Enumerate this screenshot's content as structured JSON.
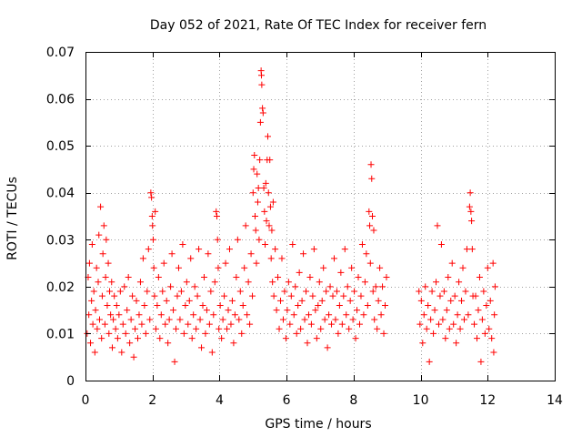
{
  "chart_data": {
    "type": "scatter",
    "title": "Day 052 of 2021, Rate Of TEC Index for receiver fern",
    "xlabel": "GPS time / hours",
    "ylabel": "ROTI / TECUs",
    "xlim": [
      0,
      14
    ],
    "ylim": [
      0,
      0.07
    ],
    "xticks": [
      0,
      2,
      4,
      6,
      8,
      10,
      12,
      14
    ],
    "xtick_labels": [
      "0",
      "2",
      "4",
      "6",
      "8",
      "10",
      "12",
      "14"
    ],
    "yticks": [
      0,
      0.01,
      0.02,
      0.03,
      0.04,
      0.05,
      0.06,
      0.07
    ],
    "ytick_labels": [
      "0",
      "0.01",
      "0.02",
      "0.03",
      "0.04",
      "0.05",
      "0.06",
      "0.07"
    ],
    "grid": true,
    "marker": "plus",
    "series_color": "#ff0000",
    "points": [
      [
        0.05,
        0.01
      ],
      [
        0.08,
        0.022
      ],
      [
        0.1,
        0.014
      ],
      [
        0.12,
        0.025
      ],
      [
        0.15,
        0.008
      ],
      [
        0.18,
        0.017
      ],
      [
        0.2,
        0.029
      ],
      [
        0.22,
        0.012
      ],
      [
        0.25,
        0.019
      ],
      [
        0.28,
        0.006
      ],
      [
        0.3,
        0.015
      ],
      [
        0.33,
        0.024
      ],
      [
        0.35,
        0.011
      ],
      [
        0.38,
        0.021
      ],
      [
        0.4,
        0.031
      ],
      [
        0.42,
        0.013
      ],
      [
        0.45,
        0.037
      ],
      [
        0.48,
        0.009
      ],
      [
        0.5,
        0.018
      ],
      [
        0.52,
        0.027
      ],
      [
        0.55,
        0.033
      ],
      [
        0.58,
        0.012
      ],
      [
        0.6,
        0.022
      ],
      [
        0.62,
        0.03
      ],
      [
        0.65,
        0.016
      ],
      [
        0.68,
        0.025
      ],
      [
        0.7,
        0.01
      ],
      [
        0.72,
        0.019
      ],
      [
        0.75,
        0.014
      ],
      [
        0.78,
        0.021
      ],
      [
        0.8,
        0.007
      ],
      [
        0.83,
        0.013
      ],
      [
        0.86,
        0.018
      ],
      [
        0.9,
        0.011
      ],
      [
        0.93,
        0.016
      ],
      [
        0.96,
        0.009
      ],
      [
        1.0,
        0.014
      ],
      [
        1.04,
        0.019
      ],
      [
        1.08,
        0.006
      ],
      [
        1.12,
        0.012
      ],
      [
        1.16,
        0.02
      ],
      [
        1.2,
        0.01
      ],
      [
        1.24,
        0.015
      ],
      [
        1.28,
        0.022
      ],
      [
        1.32,
        0.008
      ],
      [
        1.36,
        0.013
      ],
      [
        1.4,
        0.018
      ],
      [
        1.44,
        0.005
      ],
      [
        1.48,
        0.011
      ],
      [
        1.52,
        0.017
      ],
      [
        1.56,
        0.009
      ],
      [
        1.6,
        0.014
      ],
      [
        1.64,
        0.021
      ],
      [
        1.68,
        0.012
      ],
      [
        1.72,
        0.026
      ],
      [
        1.76,
        0.016
      ],
      [
        1.8,
        0.01
      ],
      [
        1.84,
        0.019
      ],
      [
        1.88,
        0.028
      ],
      [
        1.92,
        0.013
      ],
      [
        1.95,
        0.04
      ],
      [
        1.97,
        0.039
      ],
      [
        1.99,
        0.035
      ],
      [
        2.0,
        0.033
      ],
      [
        2.02,
        0.03
      ],
      [
        2.04,
        0.024
      ],
      [
        2.06,
        0.018
      ],
      [
        2.08,
        0.036
      ],
      [
        2.1,
        0.011
      ],
      [
        2.14,
        0.016
      ],
      [
        2.18,
        0.022
      ],
      [
        2.22,
        0.009
      ],
      [
        2.26,
        0.014
      ],
      [
        2.3,
        0.019
      ],
      [
        2.34,
        0.025
      ],
      [
        2.38,
        0.012
      ],
      [
        2.42,
        0.017
      ],
      [
        2.46,
        0.008
      ],
      [
        2.5,
        0.013
      ],
      [
        2.54,
        0.02
      ],
      [
        2.58,
        0.027
      ],
      [
        2.62,
        0.015
      ],
      [
        2.66,
        0.004
      ],
      [
        2.7,
        0.011
      ],
      [
        2.74,
        0.018
      ],
      [
        2.78,
        0.024
      ],
      [
        2.82,
        0.013
      ],
      [
        2.86,
        0.019
      ],
      [
        2.9,
        0.029
      ],
      [
        2.94,
        0.01
      ],
      [
        2.98,
        0.016
      ],
      [
        3.02,
        0.021
      ],
      [
        3.06,
        0.012
      ],
      [
        3.1,
        0.017
      ],
      [
        3.14,
        0.026
      ],
      [
        3.18,
        0.009
      ],
      [
        3.22,
        0.014
      ],
      [
        3.26,
        0.02
      ],
      [
        3.3,
        0.011
      ],
      [
        3.34,
        0.018
      ],
      [
        3.38,
        0.028
      ],
      [
        3.42,
        0.013
      ],
      [
        3.46,
        0.007
      ],
      [
        3.5,
        0.016
      ],
      [
        3.54,
        0.022
      ],
      [
        3.58,
        0.01
      ],
      [
        3.62,
        0.015
      ],
      [
        3.66,
        0.027
      ],
      [
        3.7,
        0.012
      ],
      [
        3.74,
        0.019
      ],
      [
        3.78,
        0.006
      ],
      [
        3.82,
        0.014
      ],
      [
        3.86,
        0.021
      ],
      [
        3.9,
        0.036
      ],
      [
        3.92,
        0.035
      ],
      [
        3.94,
        0.03
      ],
      [
        3.96,
        0.024
      ],
      [
        3.98,
        0.011
      ],
      [
        4.02,
        0.016
      ],
      [
        4.06,
        0.009
      ],
      [
        4.1,
        0.013
      ],
      [
        4.14,
        0.018
      ],
      [
        4.18,
        0.025
      ],
      [
        4.22,
        0.011
      ],
      [
        4.26,
        0.015
      ],
      [
        4.3,
        0.028
      ],
      [
        4.34,
        0.012
      ],
      [
        4.38,
        0.017
      ],
      [
        4.42,
        0.008
      ],
      [
        4.46,
        0.014
      ],
      [
        4.5,
        0.022
      ],
      [
        4.54,
        0.03
      ],
      [
        4.58,
        0.013
      ],
      [
        4.62,
        0.019
      ],
      [
        4.66,
        0.01
      ],
      [
        4.7,
        0.016
      ],
      [
        4.74,
        0.024
      ],
      [
        4.78,
        0.033
      ],
      [
        4.82,
        0.014
      ],
      [
        4.86,
        0.021
      ],
      [
        4.9,
        0.012
      ],
      [
        4.94,
        0.027
      ],
      [
        4.98,
        0.018
      ],
      [
        5.0,
        0.04
      ],
      [
        5.02,
        0.045
      ],
      [
        5.04,
        0.048
      ],
      [
        5.06,
        0.035
      ],
      [
        5.08,
        0.032
      ],
      [
        5.1,
        0.025
      ],
      [
        5.12,
        0.044
      ],
      [
        5.14,
        0.038
      ],
      [
        5.16,
        0.041
      ],
      [
        5.18,
        0.03
      ],
      [
        5.2,
        0.047
      ],
      [
        5.22,
        0.055
      ],
      [
        5.24,
        0.066
      ],
      [
        5.25,
        0.065
      ],
      [
        5.26,
        0.063
      ],
      [
        5.28,
        0.058
      ],
      [
        5.3,
        0.057
      ],
      [
        5.32,
        0.041
      ],
      [
        5.34,
        0.036
      ],
      [
        5.36,
        0.029
      ],
      [
        5.38,
        0.042
      ],
      [
        5.4,
        0.034
      ],
      [
        5.42,
        0.047
      ],
      [
        5.44,
        0.052
      ],
      [
        5.46,
        0.04
      ],
      [
        5.48,
        0.033
      ],
      [
        5.5,
        0.047
      ],
      [
        5.52,
        0.037
      ],
      [
        5.54,
        0.026
      ],
      [
        5.56,
        0.032
      ],
      [
        5.58,
        0.021
      ],
      [
        5.6,
        0.038
      ],
      [
        5.62,
        0.018
      ],
      [
        5.66,
        0.028
      ],
      [
        5.7,
        0.015
      ],
      [
        5.74,
        0.022
      ],
      [
        5.78,
        0.011
      ],
      [
        5.82,
        0.017
      ],
      [
        5.86,
        0.026
      ],
      [
        5.9,
        0.013
      ],
      [
        5.94,
        0.019
      ],
      [
        5.98,
        0.009
      ],
      [
        6.02,
        0.015
      ],
      [
        6.06,
        0.021
      ],
      [
        6.1,
        0.012
      ],
      [
        6.14,
        0.018
      ],
      [
        6.18,
        0.029
      ],
      [
        6.22,
        0.014
      ],
      [
        6.26,
        0.02
      ],
      [
        6.3,
        0.01
      ],
      [
        6.34,
        0.016
      ],
      [
        6.38,
        0.023
      ],
      [
        6.42,
        0.011
      ],
      [
        6.46,
        0.017
      ],
      [
        6.5,
        0.027
      ],
      [
        6.54,
        0.013
      ],
      [
        6.58,
        0.019
      ],
      [
        6.62,
        0.008
      ],
      [
        6.66,
        0.014
      ],
      [
        6.7,
        0.022
      ],
      [
        6.74,
        0.012
      ],
      [
        6.78,
        0.018
      ],
      [
        6.82,
        0.028
      ],
      [
        6.86,
        0.015
      ],
      [
        6.9,
        0.009
      ],
      [
        6.94,
        0.016
      ],
      [
        6.98,
        0.021
      ],
      [
        7.02,
        0.011
      ],
      [
        7.06,
        0.017
      ],
      [
        7.1,
        0.024
      ],
      [
        7.14,
        0.013
      ],
      [
        7.18,
        0.019
      ],
      [
        7.22,
        0.007
      ],
      [
        7.26,
        0.014
      ],
      [
        7.3,
        0.02
      ],
      [
        7.34,
        0.012
      ],
      [
        7.38,
        0.018
      ],
      [
        7.42,
        0.026
      ],
      [
        7.46,
        0.013
      ],
      [
        7.5,
        0.019
      ],
      [
        7.54,
        0.01
      ],
      [
        7.58,
        0.016
      ],
      [
        7.62,
        0.023
      ],
      [
        7.66,
        0.012
      ],
      [
        7.7,
        0.018
      ],
      [
        7.74,
        0.028
      ],
      [
        7.78,
        0.014
      ],
      [
        7.82,
        0.02
      ],
      [
        7.86,
        0.011
      ],
      [
        7.9,
        0.017
      ],
      [
        7.94,
        0.024
      ],
      [
        7.98,
        0.013
      ],
      [
        8.02,
        0.019
      ],
      [
        8.06,
        0.009
      ],
      [
        8.1,
        0.015
      ],
      [
        8.14,
        0.022
      ],
      [
        8.18,
        0.012
      ],
      [
        8.22,
        0.018
      ],
      [
        8.26,
        0.029
      ],
      [
        8.3,
        0.014
      ],
      [
        8.34,
        0.021
      ],
      [
        8.38,
        0.027
      ],
      [
        8.42,
        0.016
      ],
      [
        8.46,
        0.036
      ],
      [
        8.48,
        0.033
      ],
      [
        8.5,
        0.025
      ],
      [
        8.52,
        0.046
      ],
      [
        8.54,
        0.043
      ],
      [
        8.56,
        0.035
      ],
      [
        8.58,
        0.019
      ],
      [
        8.6,
        0.032
      ],
      [
        8.62,
        0.013
      ],
      [
        8.66,
        0.02
      ],
      [
        8.7,
        0.011
      ],
      [
        8.74,
        0.017
      ],
      [
        8.78,
        0.024
      ],
      [
        8.82,
        0.014
      ],
      [
        8.86,
        0.02
      ],
      [
        8.9,
        0.01
      ],
      [
        8.94,
        0.016
      ],
      [
        8.98,
        0.022
      ],
      [
        9.95,
        0.019
      ],
      [
        9.98,
        0.012
      ],
      [
        10.02,
        0.017
      ],
      [
        10.06,
        0.008
      ],
      [
        10.1,
        0.014
      ],
      [
        10.14,
        0.02
      ],
      [
        10.18,
        0.011
      ],
      [
        10.22,
        0.016
      ],
      [
        10.26,
        0.004
      ],
      [
        10.3,
        0.013
      ],
      [
        10.34,
        0.019
      ],
      [
        10.38,
        0.01
      ],
      [
        10.42,
        0.015
      ],
      [
        10.46,
        0.021
      ],
      [
        10.5,
        0.033
      ],
      [
        10.54,
        0.012
      ],
      [
        10.58,
        0.018
      ],
      [
        10.62,
        0.029
      ],
      [
        10.66,
        0.013
      ],
      [
        10.7,
        0.019
      ],
      [
        10.74,
        0.009
      ],
      [
        10.78,
        0.015
      ],
      [
        10.82,
        0.022
      ],
      [
        10.86,
        0.011
      ],
      [
        10.9,
        0.017
      ],
      [
        10.94,
        0.025
      ],
      [
        10.98,
        0.012
      ],
      [
        11.02,
        0.018
      ],
      [
        11.06,
        0.008
      ],
      [
        11.1,
        0.014
      ],
      [
        11.14,
        0.021
      ],
      [
        11.18,
        0.011
      ],
      [
        11.22,
        0.017
      ],
      [
        11.26,
        0.024
      ],
      [
        11.3,
        0.013
      ],
      [
        11.34,
        0.019
      ],
      [
        11.38,
        0.028
      ],
      [
        11.42,
        0.014
      ],
      [
        11.46,
        0.037
      ],
      [
        11.48,
        0.04
      ],
      [
        11.5,
        0.036
      ],
      [
        11.52,
        0.034
      ],
      [
        11.54,
        0.028
      ],
      [
        11.56,
        0.018
      ],
      [
        11.6,
        0.012
      ],
      [
        11.64,
        0.018
      ],
      [
        11.68,
        0.009
      ],
      [
        11.72,
        0.015
      ],
      [
        11.76,
        0.022
      ],
      [
        11.8,
        0.004
      ],
      [
        11.84,
        0.013
      ],
      [
        11.88,
        0.019
      ],
      [
        11.92,
        0.01
      ],
      [
        11.96,
        0.016
      ],
      [
        12.0,
        0.024
      ],
      [
        12.04,
        0.011
      ],
      [
        12.08,
        0.017
      ],
      [
        12.12,
        0.009
      ],
      [
        12.16,
        0.025
      ],
      [
        12.18,
        0.006
      ],
      [
        12.2,
        0.014
      ],
      [
        12.22,
        0.02
      ]
    ]
  }
}
